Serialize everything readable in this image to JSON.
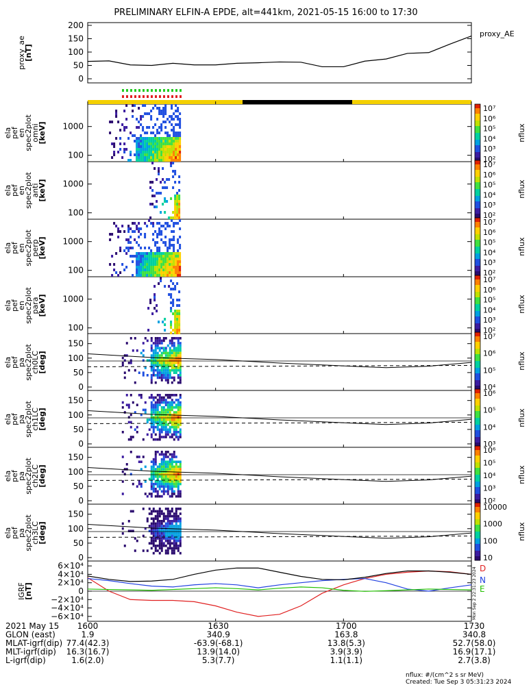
{
  "title": "PRELIMINARY ELFIN-A EPDE, alt=441km, 2021-05-15 16:00 to 17:30",
  "colors": {
    "bar_yellow": "#f4d000",
    "bar_black": "#000000",
    "flag_green": "#22cc22",
    "flag_red": "#e02020",
    "line_black": "#000000",
    "line_red": "#e02020",
    "line_blue": "#1f3fe0",
    "line_green": "#22c000"
  },
  "panels": {
    "ae": {
      "ylabel": "proxy_ae\n[nT]",
      "ticks": [
        "200",
        "150",
        "100",
        "50",
        "0"
      ],
      "legend": "proxy_AE"
    },
    "spec_energy": [
      {
        "ylabel": "ela\npef\nen\nspec2plot\nomni\n[keV]",
        "ticks": [
          "1000",
          "100"
        ]
      },
      {
        "ylabel": "ela\npef\nen\nspec2plot\nanti\n[keV]",
        "ticks": [
          "1000",
          "100"
        ]
      },
      {
        "ylabel": "ela\npef\nen\nspec2plot\nperp\n[keV]",
        "ticks": [
          "1000",
          "100"
        ]
      },
      {
        "ylabel": "ela\npef\nen\nspec2plot\npara\n[keV]",
        "ticks": [
          "1000",
          "100"
        ]
      }
    ],
    "spec_pa": [
      {
        "ylabel": "ela\npef\npa\nspec2plot\nch0LC\n[deg]",
        "ticks": [
          "150",
          "100",
          "50",
          "0"
        ]
      },
      {
        "ylabel": "ela\npef\npa\nspec2plot\nch1LC\n[deg]",
        "ticks": [
          "150",
          "100",
          "50",
          "0"
        ]
      },
      {
        "ylabel": "ela\npef\npa\nspec2plot\nch2LC\n[deg]",
        "ticks": [
          "150",
          "100",
          "50",
          "0"
        ]
      },
      {
        "ylabel": "ela\npef\npa\nspec2plot\nch3LC\n[deg]",
        "ticks": [
          "150",
          "100",
          "50",
          "0"
        ]
      }
    ],
    "igrf": {
      "ylabel": "IGRF\n[nT]",
      "ticks": [
        "6×10⁴",
        "4×10⁴",
        "2×10⁴",
        "0",
        "−2×10⁴",
        "−4×10⁴",
        "−6×10⁴"
      ],
      "legend": [
        "D",
        "N",
        "E"
      ],
      "side_note": "Mon Sep  2 22:31:23 2024"
    }
  },
  "colorbars": [
    {
      "label": "nflux",
      "ticks": [
        "10⁷",
        "10⁶",
        "10⁵",
        "10⁴",
        "10³",
        "10²"
      ]
    },
    {
      "label": "nflux",
      "ticks": [
        "10⁷",
        "10⁶",
        "10⁵",
        "10⁴",
        "10³",
        "10²"
      ]
    },
    {
      "label": "nflux",
      "ticks": [
        "10⁷",
        "10⁶",
        "10⁵",
        "10⁴",
        "10³",
        "10²"
      ]
    },
    {
      "label": "nflux",
      "ticks": [
        "10⁷",
        "10⁶",
        "10⁵",
        "10⁴",
        "10³",
        "10²"
      ]
    },
    {
      "label": "nflux",
      "ticks": [
        "10⁷",
        "10⁶",
        "10⁵",
        "10⁴"
      ]
    },
    {
      "label": "nflux",
      "ticks": [
        "10⁶",
        "10⁵",
        "10⁴",
        "10³"
      ]
    },
    {
      "label": "nflux",
      "ticks": [
        "10⁶",
        "10⁵",
        "10⁴",
        "10³",
        "10²"
      ]
    },
    {
      "label": "nflux",
      "ticks": [
        "10000",
        "1000",
        "100",
        "10"
      ]
    }
  ],
  "footer": {
    "row_labels": [
      "2021 May 15",
      "GLON (east)",
      "MLAT-igrf(dip)",
      "MLT-igrf(dip)",
      "L-igrf(dip)"
    ],
    "columns": [
      [
        "1600",
        "1.9",
        "77.4(42.3)",
        "16.3(16.7)",
        "1.6(2.0)"
      ],
      [
        "1630",
        "340.9",
        "-63.9(-68.1)",
        "13.9(14.0)",
        "5.3(7.7)"
      ],
      [
        "1700",
        "163.8",
        "13.8(5.3)",
        "3.9(3.9)",
        "1.1(1.1)"
      ],
      [
        "1730",
        "340.8",
        "52.7(58.0)",
        "16.9(17.1)",
        "2.7(3.8)"
      ]
    ],
    "units_note": "nflux: #/(cm^2 s sr MeV)",
    "created": "Created: Tue Sep  3 05:31:23 2024"
  },
  "chart_data": [
    {
      "type": "line",
      "name": "proxy_ae",
      "x": [
        1600,
        1605,
        1610,
        1615,
        1620,
        1625,
        1630,
        1635,
        1640,
        1645,
        1650,
        1655,
        1700,
        1705,
        1710,
        1715,
        1720,
        1725,
        1730
      ],
      "y": [
        65,
        67,
        52,
        50,
        58,
        52,
        52,
        58,
        60,
        63,
        62,
        45,
        45,
        66,
        74,
        95,
        98,
        130,
        160
      ],
      "ylim": [
        0,
        210
      ],
      "legend": "proxy_AE"
    },
    {
      "type": "heatmap",
      "name": "energy spectrograms",
      "xlim": [
        1600,
        1730
      ],
      "ylim_keV": [
        60,
        6000
      ],
      "yscale": "log",
      "active_interval": [
        1606,
        1618
      ],
      "zscale": "log"
    },
    {
      "type": "line",
      "name": "loss cone (pitch-angle panels)",
      "x": [
        1600,
        1615,
        1630,
        1645,
        1700,
        1710,
        1720,
        1730
      ],
      "solid_y": [
        115,
        102,
        95,
        83,
        73,
        67,
        72,
        85
      ],
      "dashed_y": 70,
      "reference_y": 90,
      "ylim": [
        0,
        180
      ]
    },
    {
      "type": "line",
      "name": "IGRF",
      "x": [
        1600,
        1605,
        1610,
        1615,
        1620,
        1625,
        1630,
        1635,
        1640,
        1645,
        1650,
        1655,
        1700,
        1705,
        1710,
        1715,
        1720,
        1725,
        1730
      ],
      "series": [
        {
          "name": "D",
          "color": "#e02020",
          "values": [
            32000,
            0,
            -20000,
            -22000,
            -22000,
            -25000,
            -35000,
            -50000,
            -60000,
            -55000,
            -35000,
            -5000,
            15000,
            30000,
            40000,
            45000,
            48000,
            46000,
            40000
          ]
        },
        {
          "name": "N",
          "color": "#1f3fe0",
          "values": [
            30000,
            25000,
            18000,
            12000,
            10000,
            15000,
            18000,
            15000,
            8000,
            15000,
            20000,
            25000,
            28000,
            30000,
            20000,
            5000,
            0,
            8000,
            15000
          ]
        },
        {
          "name": "E",
          "color": "#22c000",
          "values": [
            5000,
            4000,
            3000,
            2000,
            4000,
            6000,
            8000,
            6000,
            3000,
            7000,
            10000,
            8000,
            2000,
            -500,
            1000,
            3000,
            5000,
            4000,
            3000
          ]
        },
        {
          "name": "|B|",
          "color": "#000000",
          "values": [
            36000,
            28000,
            23000,
            24000,
            28000,
            40000,
            50000,
            55000,
            55000,
            45000,
            35000,
            28000,
            27000,
            33000,
            42000,
            48000,
            48000,
            45000,
            40000
          ]
        }
      ],
      "ylim": [
        -70000,
        70000
      ]
    }
  ]
}
